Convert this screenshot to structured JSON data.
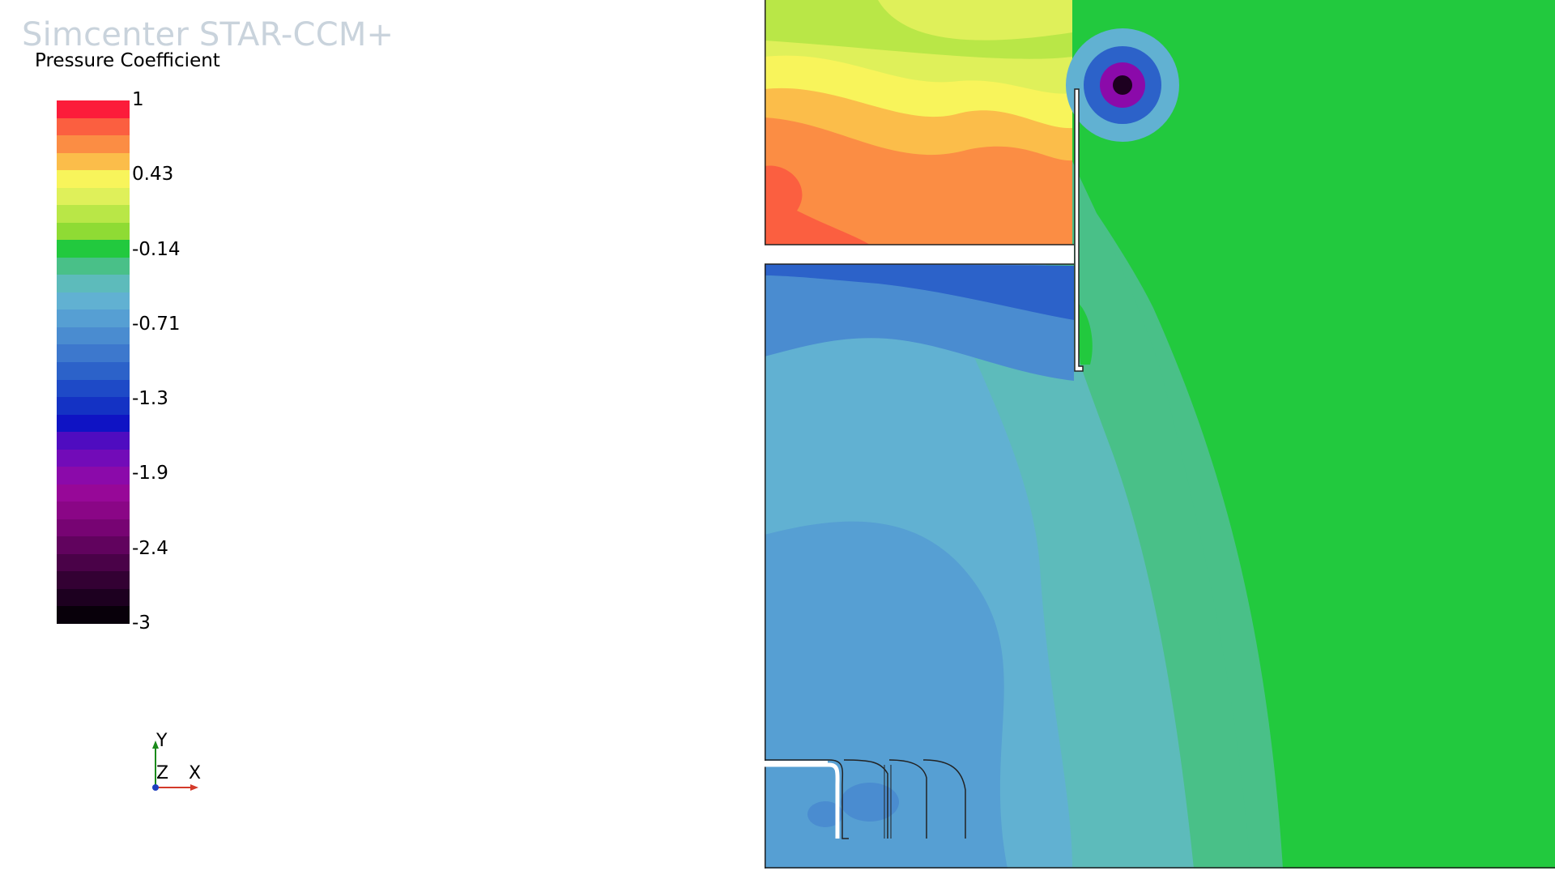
{
  "app": {
    "brand": "Simcenter STAR-CCM+"
  },
  "legend": {
    "title": "Pressure Coefficient",
    "min": -3,
    "max": 1,
    "tick_labels": [
      "1",
      "0.43",
      "-0.14",
      "-0.71",
      "-1.3",
      "-1.9",
      "-2.4",
      "-3"
    ],
    "band_colors": [
      "#fc1c3a",
      "#fb5f40",
      "#fb8d44",
      "#fbbd4a",
      "#f8f45b",
      "#dff05a",
      "#b9e747",
      "#8fdb34",
      "#22c93e",
      "#49c088",
      "#5dbbbb",
      "#61b1d2",
      "#569fd3",
      "#4a8cd0",
      "#3d78cd",
      "#2c62c9",
      "#1e4ac7",
      "#1432c4",
      "#0f13c4",
      "#4f0cc0",
      "#720bb8",
      "#8b0aaa",
      "#970898",
      "#8a0686",
      "#770473",
      "#61035e",
      "#4a0248",
      "#330133",
      "#1d0020",
      "#08000a"
    ]
  },
  "triad": {
    "y_label": "Y",
    "z_label": "Z",
    "x_label": "X"
  },
  "field_colors": {
    "outer_green": "#22c93e",
    "teal": "#49c088",
    "cyan": "#5dbbbb",
    "light_blue": "#61b1d2",
    "mid_blue": "#569fd3",
    "blue": "#4a8cd0",
    "deep_blue": "#2c62c9",
    "yellow": "#f8f45b",
    "yellow_green": "#dff05a",
    "lime": "#b9e747",
    "light_orange": "#fbbd4a",
    "orange": "#fb8d44",
    "red_orange": "#fb5f40",
    "vortex_purple": "#8b0aaa",
    "vortex_core": "#1d0020"
  }
}
